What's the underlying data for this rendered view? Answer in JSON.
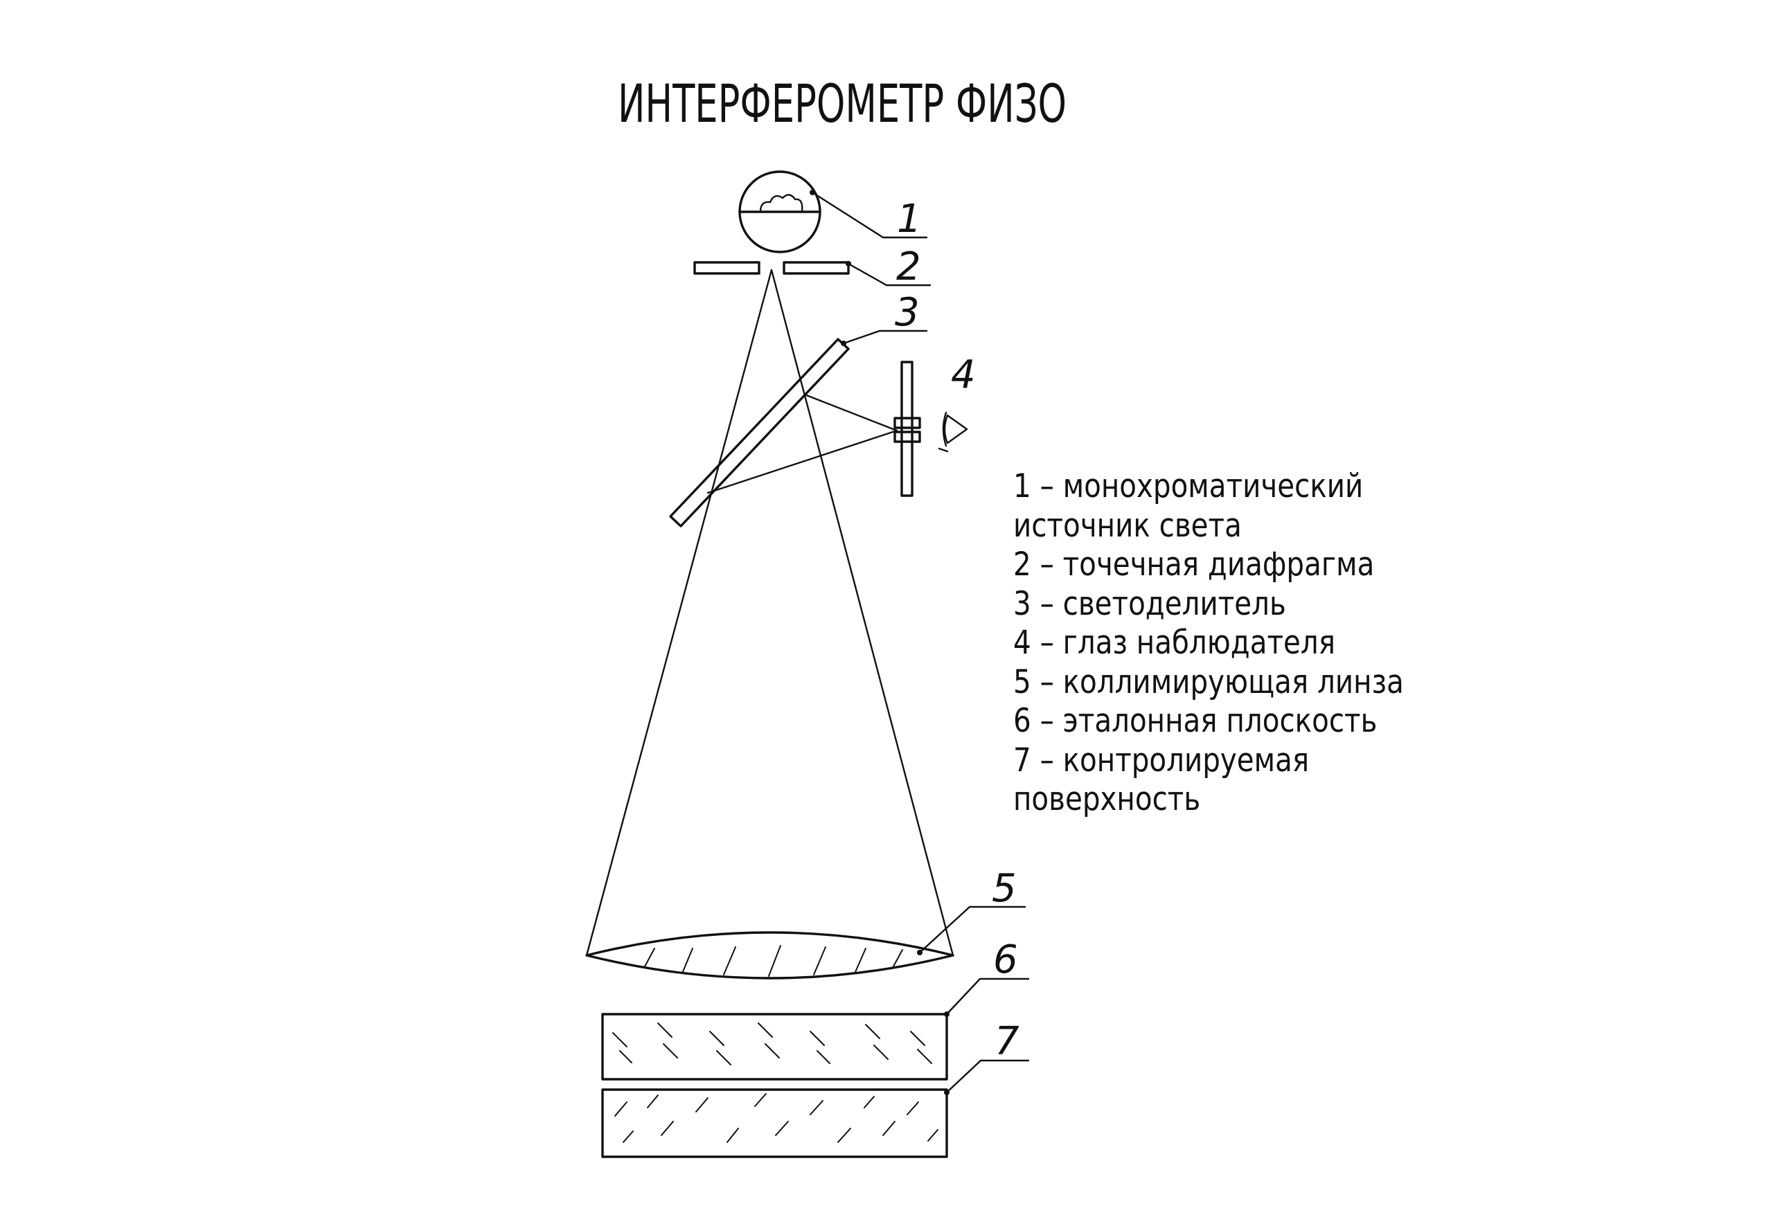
{
  "title": "ИНТЕРФЕРОМЕТР ФИЗО",
  "callouts": [
    "1",
    "2",
    "3",
    "4",
    "5",
    "6",
    "7"
  ],
  "legend": [
    "1 – монохроматический",
    "источник света",
    "2 – точечная диафрагма",
    "3 – светоделитель",
    "4 – глаз наблюдателя",
    "5 – коллимирующая линза",
    "6 – эталонная плоскость",
    "7 – контролируемая",
    "поверхность"
  ],
  "colors": {
    "ink": "#111111",
    "background": "#ffffff"
  }
}
